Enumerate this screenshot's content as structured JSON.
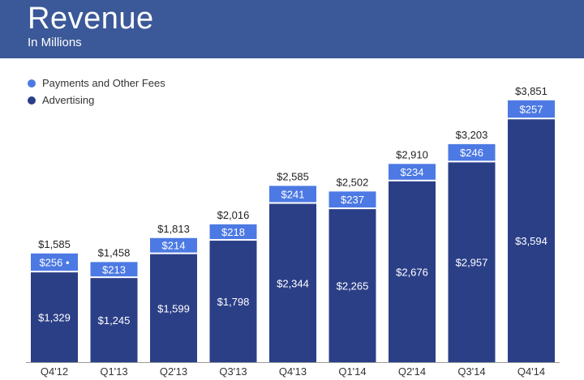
{
  "header": {
    "title": "Revenue",
    "subtitle": "In Millions"
  },
  "legend": [
    {
      "label": "Payments and Other Fees",
      "color": "#4c79e3"
    },
    {
      "label": "Advertising",
      "color": "#2b3f87"
    }
  ],
  "chart_data": {
    "type": "bar",
    "stacked": true,
    "categories": [
      "Q4'12",
      "Q1'13",
      "Q2'13",
      "Q3'13",
      "Q4'13",
      "Q1'14",
      "Q2'14",
      "Q3'14",
      "Q4'14"
    ],
    "series": [
      {
        "name": "Advertising",
        "values": [
          1329,
          1245,
          1599,
          1798,
          2344,
          2265,
          2676,
          2957,
          3594
        ],
        "labels": [
          "$1,329",
          "$1,245",
          "$1,599",
          "$1,798",
          "$2,344",
          "$2,265",
          "$2,676",
          "$2,957",
          "$3,594"
        ],
        "color": "#2b3f87"
      },
      {
        "name": "Payments and Other Fees",
        "values": [
          256,
          213,
          214,
          218,
          241,
          237,
          234,
          246,
          257
        ],
        "labels": [
          "$256 •",
          "$213",
          "$214",
          "$218",
          "$241",
          "$237",
          "$234",
          "$246",
          "$257"
        ],
        "color": "#4c79e3"
      }
    ],
    "totals": [
      1585,
      1458,
      1813,
      2016,
      2585,
      2502,
      2910,
      3203,
      3851
    ],
    "total_labels": [
      "$1,585",
      "$1,458",
      "$1,813",
      "$2,016",
      "$2,585",
      "$2,502",
      "$2,910",
      "$3,203",
      "$3,851"
    ],
    "title": "Revenue",
    "subtitle": "In Millions",
    "xlabel": "",
    "ylabel": "",
    "ylim": [
      0,
      4000
    ],
    "grid": false,
    "legend_position": "top-left"
  }
}
